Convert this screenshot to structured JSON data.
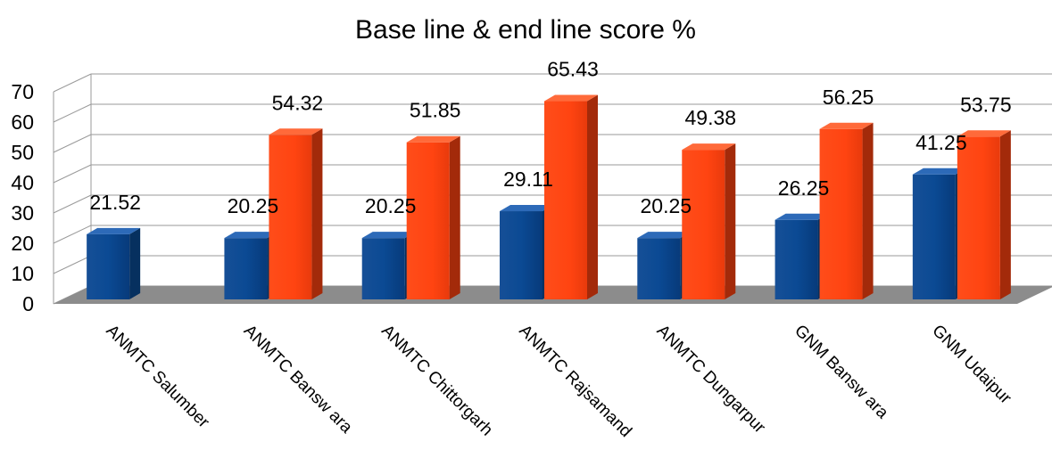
{
  "chart_data": {
    "type": "bar",
    "title": "Base line & end line score %",
    "categories": [
      "ANMTC Salumber",
      "ANMTC Bansw ara",
      "ANMTC Chittorgarh",
      "ANMTC Rajsamand",
      "ANMTC Dungarpur",
      "GNM Bansw ara",
      "GNM Udaipur"
    ],
    "series": [
      {
        "values": [
          21.52,
          20.25,
          20.25,
          29.11,
          20.25,
          26.25,
          41.25
        ],
        "color": "#0b4a94",
        "labels": [
          "21.52",
          "20.25",
          "20.25",
          "29.11",
          "20.25",
          "26.25",
          "41.25"
        ]
      },
      {
        "values": [
          null,
          54.32,
          51.85,
          65.43,
          49.38,
          56.25,
          53.75
        ],
        "color": "#ff4411",
        "labels": [
          "",
          "54.32",
          "51.85",
          "65.43",
          "49.38",
          "56.25",
          "53.75"
        ]
      }
    ],
    "yticks": [
      0,
      10,
      20,
      30,
      40,
      50,
      60,
      70
    ],
    "ylim": [
      0,
      70
    ],
    "grid": true,
    "legend": "none",
    "style": "3d-clustered"
  }
}
